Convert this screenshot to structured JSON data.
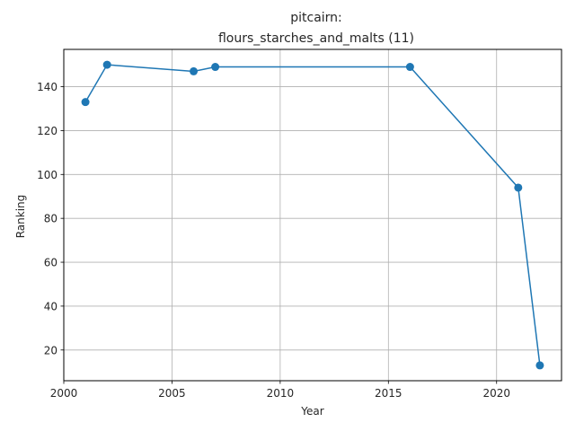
{
  "chart_data": {
    "type": "line",
    "title_line1": "pitcairn:",
    "title_line2": "flours_starches_and_malts (11)",
    "xlabel": "Year",
    "ylabel": "Ranking",
    "x": [
      2001,
      2002,
      2006,
      2007,
      2016,
      2021,
      2022
    ],
    "y": [
      133,
      150,
      147,
      149,
      149,
      94,
      13
    ],
    "xlim": [
      2000,
      2023
    ],
    "ylim": [
      6,
      157
    ],
    "xticks": [
      2000,
      2005,
      2010,
      2015,
      2020
    ],
    "yticks": [
      20,
      40,
      60,
      80,
      100,
      120,
      140
    ],
    "grid": true,
    "color": "#1f77b4"
  }
}
